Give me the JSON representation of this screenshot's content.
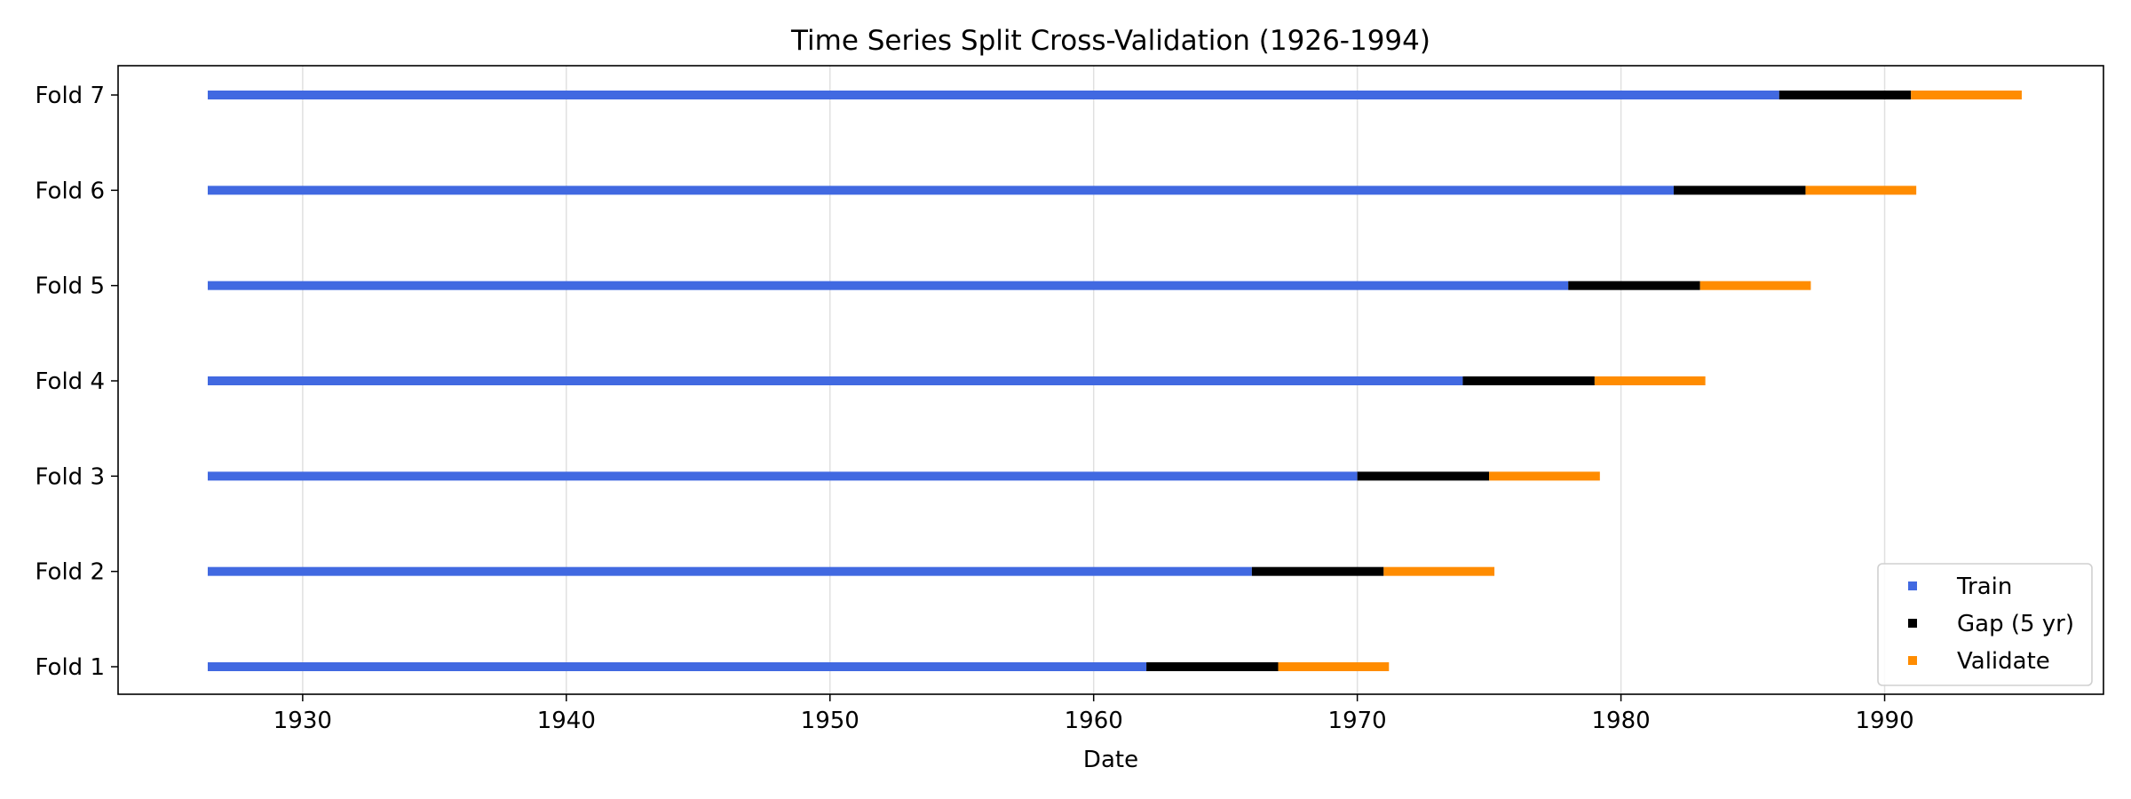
{
  "chart_data": {
    "type": "bar",
    "title": "Time Series Split Cross-Validation (1926-1994)",
    "xlabel": "Date",
    "ylabel": "",
    "xlim": [
      1923.0,
      1998.3
    ],
    "x_ticks": [
      1930,
      1940,
      1950,
      1960,
      1970,
      1980,
      1990
    ],
    "grid": "vertical",
    "legend_position": "lower-right",
    "colors": {
      "train": "#4169e1",
      "gap": "#000000",
      "validate": "#ff8c00"
    },
    "legend": [
      {
        "key": "train",
        "label": "Train"
      },
      {
        "key": "gap",
        "label": "Gap (5 yr)"
      },
      {
        "key": "validate",
        "label": "Validate"
      }
    ],
    "folds": [
      {
        "label": "Fold 1",
        "train": [
          1926.4,
          1962.0
        ],
        "gap": [
          1962.0,
          1967.0
        ],
        "validate": [
          1967.0,
          1971.2
        ]
      },
      {
        "label": "Fold 2",
        "train": [
          1926.4,
          1966.0
        ],
        "gap": [
          1966.0,
          1971.0
        ],
        "validate": [
          1971.0,
          1975.2
        ]
      },
      {
        "label": "Fold 3",
        "train": [
          1926.4,
          1970.0
        ],
        "gap": [
          1970.0,
          1975.0
        ],
        "validate": [
          1975.0,
          1979.2
        ]
      },
      {
        "label": "Fold 4",
        "train": [
          1926.4,
          1974.0
        ],
        "gap": [
          1974.0,
          1979.0
        ],
        "validate": [
          1979.0,
          1983.2
        ]
      },
      {
        "label": "Fold 5",
        "train": [
          1926.4,
          1978.0
        ],
        "gap": [
          1978.0,
          1983.0
        ],
        "validate": [
          1983.0,
          1987.2
        ]
      },
      {
        "label": "Fold 6",
        "train": [
          1926.4,
          1982.0
        ],
        "gap": [
          1982.0,
          1987.0
        ],
        "validate": [
          1987.0,
          1991.2
        ]
      },
      {
        "label": "Fold 7",
        "train": [
          1926.4,
          1986.0
        ],
        "gap": [
          1986.0,
          1991.0
        ],
        "validate": [
          1991.0,
          1995.2
        ]
      }
    ]
  }
}
